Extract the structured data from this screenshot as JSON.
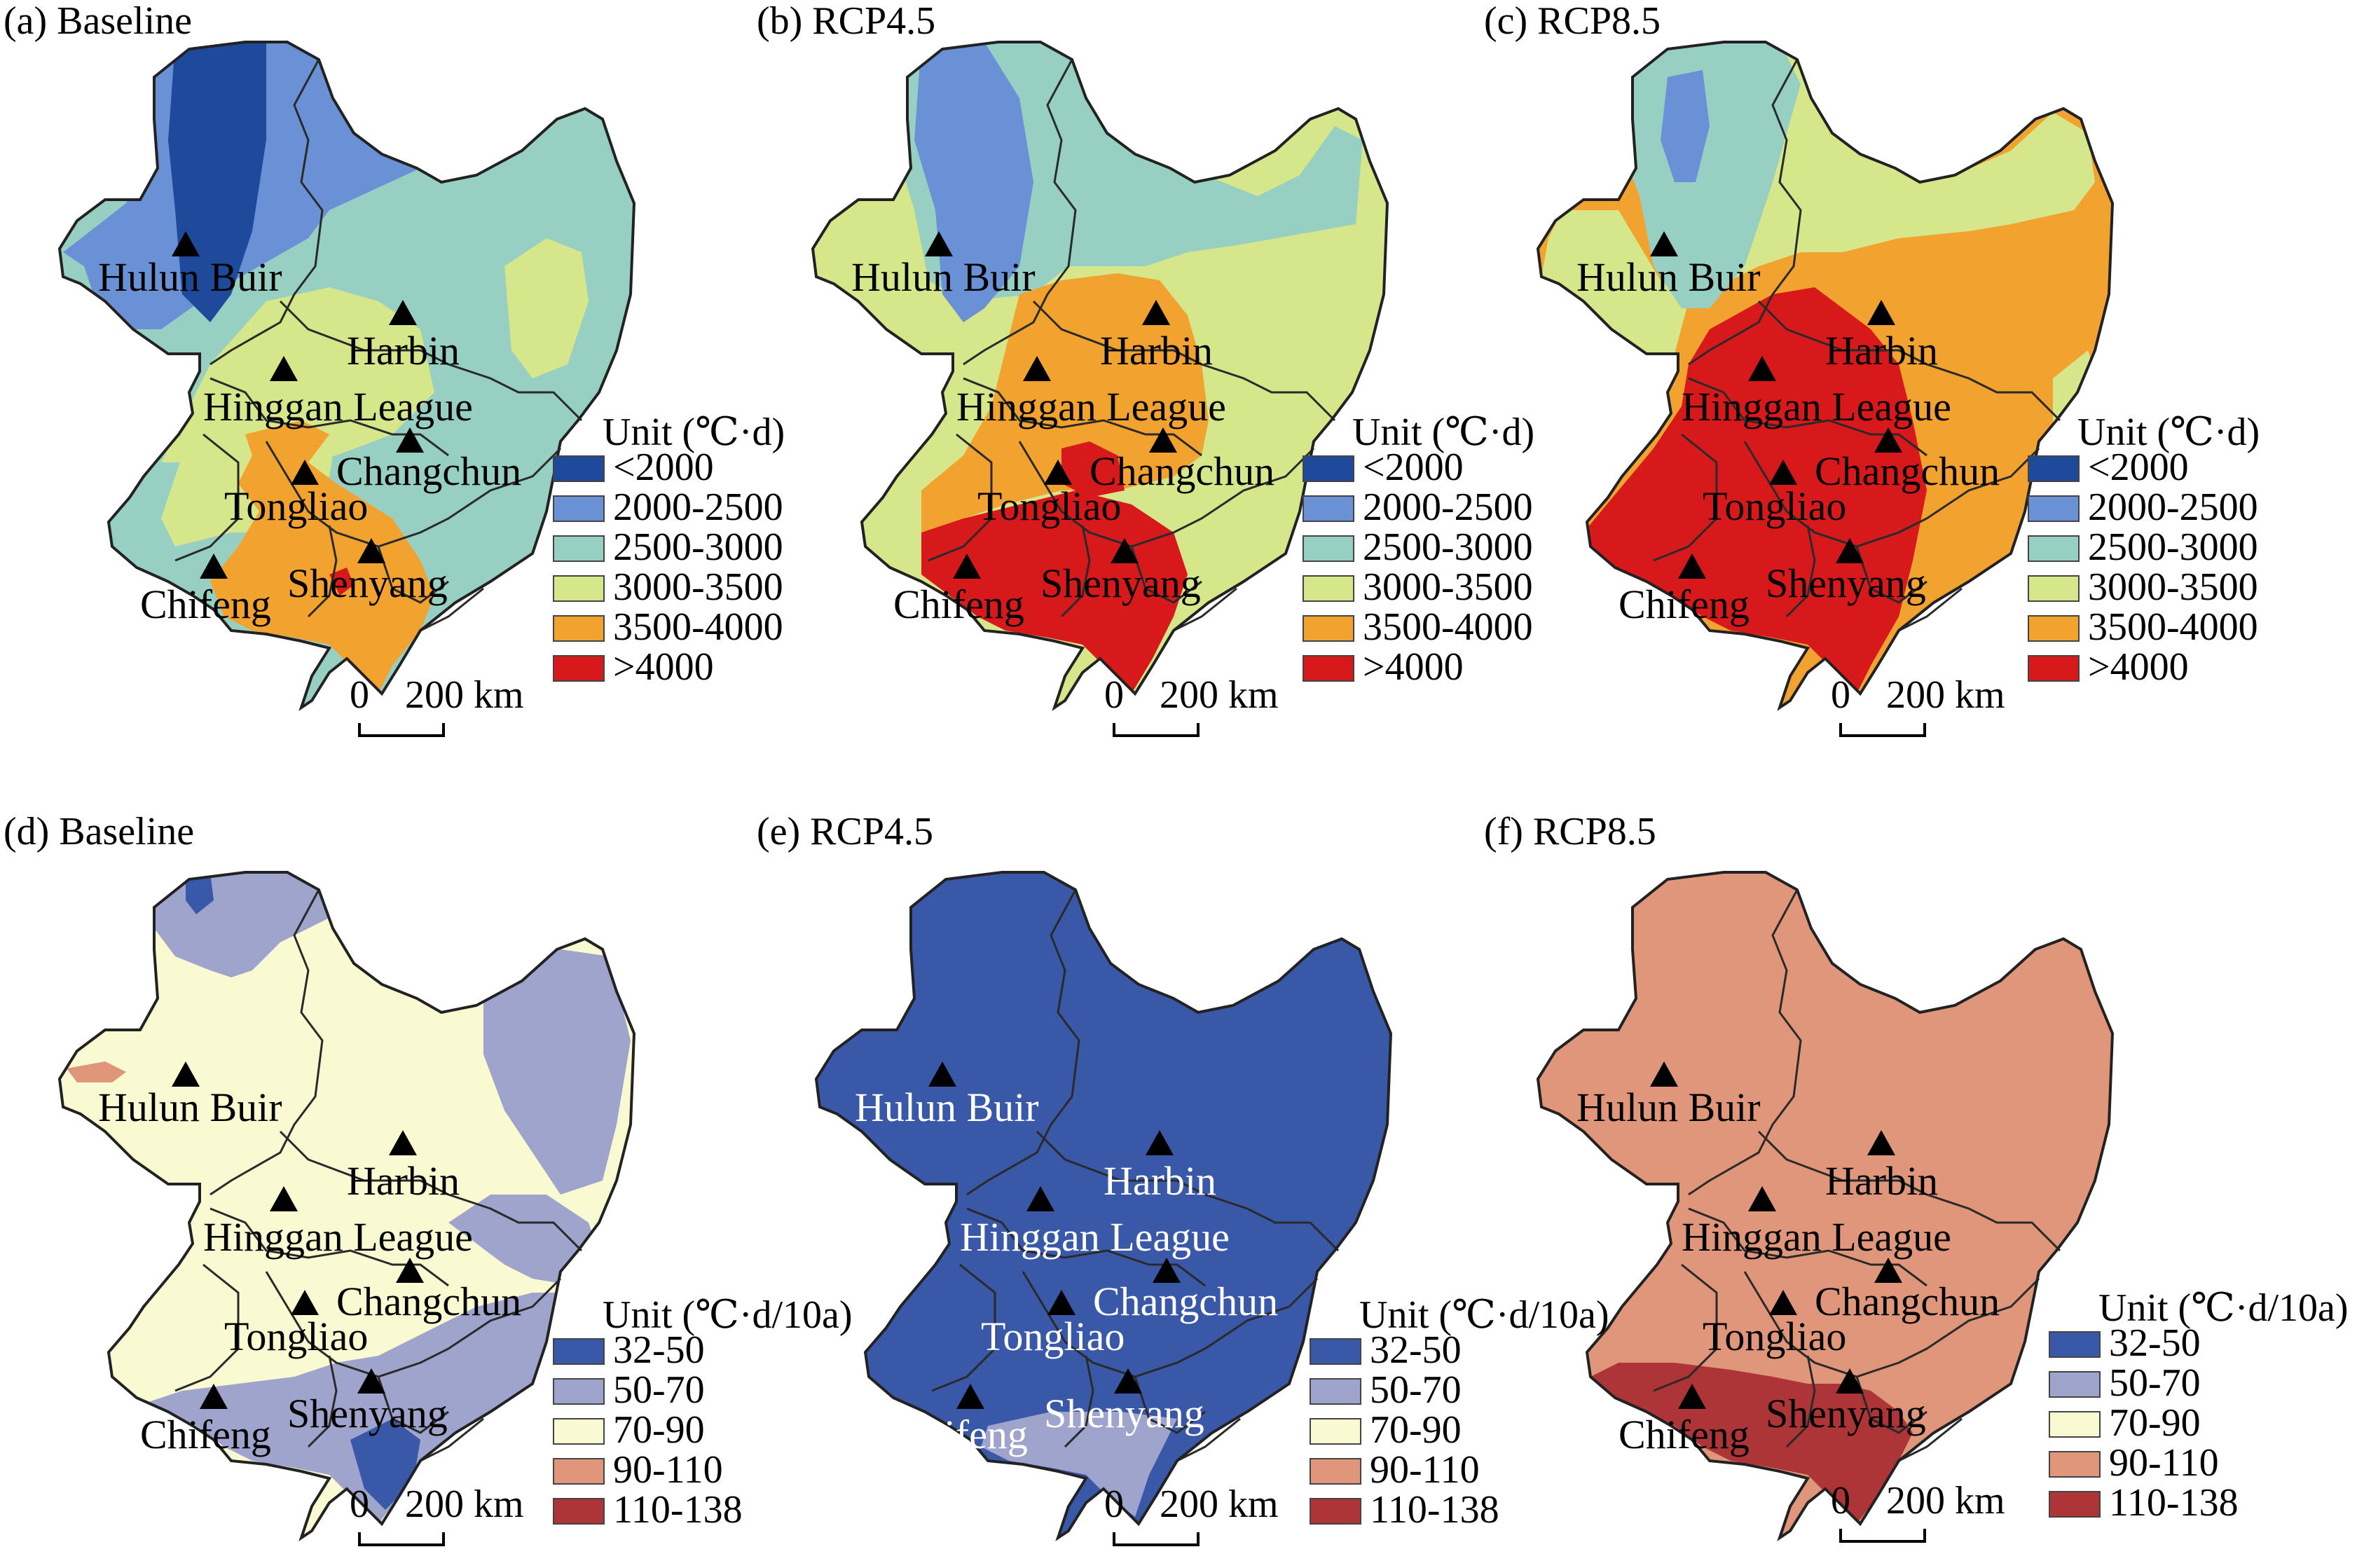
{
  "figure": {
    "legend_accum": {
      "unit": "Unit (℃·d)",
      "classes": [
        {
          "label": "<2000",
          "color": "#1f4a9c"
        },
        {
          "label": "2000-2500",
          "color": "#6a91d6"
        },
        {
          "label": "2500-3000",
          "color": "#98cfc3"
        },
        {
          "label": "3000-3500",
          "color": "#d6e68a"
        },
        {
          "label": "3500-4000",
          "color": "#f2a22e"
        },
        {
          "label": ">4000",
          "color": "#d7191c"
        }
      ]
    },
    "legend_trend": {
      "unit": "Unit (℃·d/10a)",
      "classes": [
        {
          "label": "32-50",
          "color": "#3a58a8"
        },
        {
          "label": "50-70",
          "color": "#9ea4cc"
        },
        {
          "label": "70-90",
          "color": "#fafad2"
        },
        {
          "label": "90-110",
          "color": "#e0967a"
        },
        {
          "label": "110-138",
          "color": "#ad3538"
        }
      ]
    },
    "scale_bar": {
      "zero": "0",
      "distance": "200 km"
    },
    "cities": {
      "hulun_buir": "Hulun Buir",
      "harbin": "Harbin",
      "hinggan_league": "Hinggan League",
      "changchun": "Changchun",
      "tongliao": "Tongliao",
      "chifeng": "Chifeng",
      "shenyang": "Shenyang"
    },
    "panels": [
      {
        "id": "a",
        "title": "(a) Baseline"
      },
      {
        "id": "b",
        "title": "(b) RCP4.5"
      },
      {
        "id": "c",
        "title": "(c) RCP8.5"
      },
      {
        "id": "d",
        "title": "(d) Baseline"
      },
      {
        "id": "e",
        "title": "(e) RCP4.5"
      },
      {
        "id": "f",
        "title": "(f) RCP8.5"
      }
    ]
  }
}
